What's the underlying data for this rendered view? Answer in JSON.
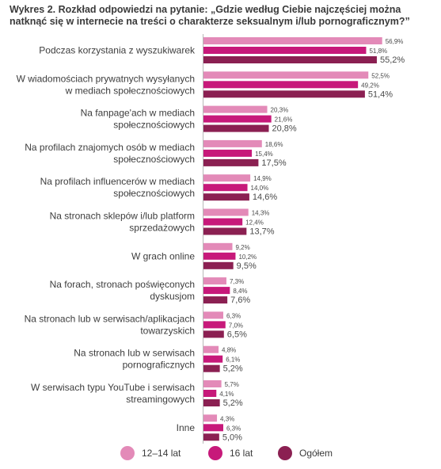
{
  "chart_data": {
    "type": "bar",
    "orientation": "horizontal",
    "title": "Wykres 2. Rozkład odpowiedzi na pytanie: „Gdzie według Ciebie najczęściej można natknąć się w internecie na treści o charakterze seksualnym i/lub pornograficznym?”",
    "categories": [
      "Podczas korzystania z wyszukiwarek",
      "W wiadomościach prywatnych wysyłanych w mediach społecznościowych",
      "Na fanpage'ach w mediach społecznościowych",
      "Na profilach znajomych osób w mediach społecznościowych",
      "Na profilach influencerów w mediach społecznościowych",
      "Na stronach sklepów i/lub platform sprzedażowych",
      "W grach online",
      "Na forach, stronach poświęconych dyskusjom",
      "Na stronach lub w serwisach/aplikacjach towarzyskich",
      "Na stronach lub w serwisach pornograficznych",
      "W serwisach typu YouTube i serwisach streamingowych",
      "Inne"
    ],
    "category_lines": [
      [
        "Podczas korzystania z wyszukiwarek"
      ],
      [
        "W wiadomościach prywatnych wysyłanych",
        "w mediach społecznościowych"
      ],
      [
        "Na fanpage'ach w mediach",
        "społecznościowych"
      ],
      [
        "Na profilach znajomych osób w mediach",
        "społecznościowych"
      ],
      [
        "Na profilach influencerów w mediach",
        "społecznościowych"
      ],
      [
        "Na stronach sklepów i/lub platform",
        "sprzedażowych"
      ],
      [
        "W grach online"
      ],
      [
        "Na forach, stronach poświęconych",
        "dyskusjom"
      ],
      [
        "Na stronach lub w serwisach/aplikacjach",
        "towarzyskich"
      ],
      [
        "Na stronach lub w serwisach",
        "pornograficznych"
      ],
      [
        "W serwisach typu YouTube i serwisach",
        "streamingowych"
      ],
      [
        "Inne"
      ]
    ],
    "series": [
      {
        "name": "12–14 lat",
        "color": "#e38ab8",
        "values": [
          56.9,
          52.5,
          20.3,
          18.6,
          14.9,
          14.3,
          9.2,
          7.3,
          6.3,
          4.8,
          5.7,
          4.3
        ],
        "labels": [
          "56,9%",
          "52,5%",
          "20,3%",
          "18,6%",
          "14,9%",
          "14,3%",
          "9,2%",
          "7,3%",
          "6,3%",
          "4,8%",
          "5,7%",
          "4,3%"
        ]
      },
      {
        "name": "16 lat",
        "color": "#c7197a",
        "values": [
          51.8,
          49.2,
          21.6,
          15.4,
          14.0,
          12.4,
          10.2,
          8.4,
          7.0,
          6.1,
          4.1,
          6.3
        ],
        "labels": [
          "51,8%",
          "49,2%",
          "21,6%",
          "15,4%",
          "14,0%",
          "12,4%",
          "10,2%",
          "8,4%",
          "7,0%",
          "6,1%",
          "4,1%",
          "6,3%"
        ]
      },
      {
        "name": "Ogółem",
        "color": "#8b2052",
        "values": [
          55.2,
          51.4,
          20.8,
          17.5,
          14.6,
          13.7,
          9.5,
          7.6,
          6.5,
          5.2,
          5.2,
          5.0
        ],
        "labels": [
          "55,2%",
          "51,4%",
          "20,8%",
          "17,5%",
          "14,6%",
          "13,7%",
          "9,5%",
          "7,6%",
          "6,5%",
          "5,2%",
          "5,2%",
          "5,0%"
        ]
      }
    ],
    "xlim": [
      0,
      60
    ],
    "xlabel": "",
    "ylabel": "",
    "grid": false,
    "legend_position": "bottom"
  }
}
